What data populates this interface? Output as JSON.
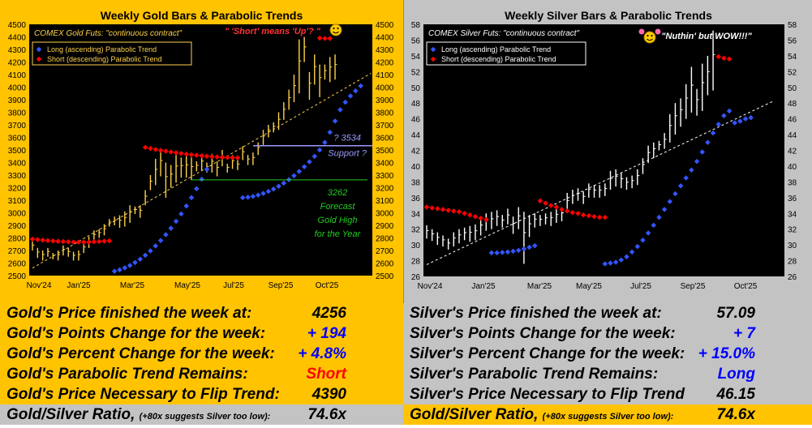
{
  "gold": {
    "chart_data": {
      "type": "bar",
      "title": "Weekly Gold Bars & Parabolic Trends",
      "subtitle": "COMEX Gold Futs:  \"continuous contract\"",
      "annotation_top": "\" 'Short' means 'Up'? \"",
      "legend": [
        "Long (ascending) Parabolic Trend",
        "Short (descending) Parabolic Trend"
      ],
      "legend_position": "top-left",
      "x_tick_labels": [
        "Nov'24",
        "Jan'25",
        "Mar'25",
        "May'25",
        "Jul'25",
        "Sep'25",
        "Oct'25"
      ],
      "ylim": [
        2500,
        4500
      ],
      "y_ticks": [
        2500,
        2600,
        2700,
        2800,
        2900,
        3000,
        3100,
        3200,
        3300,
        3400,
        3500,
        3600,
        3700,
        3800,
        3900,
        4000,
        4100,
        4200,
        4300,
        4400,
        4500
      ],
      "support_label_1": "? 3534",
      "support_label_2": "Support ?",
      "support_level": 3534,
      "forecast_label_1": "3262",
      "forecast_label_2": "Forecast",
      "forecast_label_3": "Gold High",
      "forecast_label_4": "for the Year",
      "forecast_level": 3262,
      "bars": [
        [
          2700,
          2770
        ],
        [
          2640,
          2720
        ],
        [
          2620,
          2700
        ],
        [
          2650,
          2720
        ],
        [
          2630,
          2680
        ],
        [
          2620,
          2700
        ],
        [
          2660,
          2740
        ],
        [
          2650,
          2720
        ],
        [
          2620,
          2690
        ],
        [
          2620,
          2700
        ],
        [
          2680,
          2760
        ],
        [
          2720,
          2810
        ],
        [
          2780,
          2860
        ],
        [
          2800,
          2870
        ],
        [
          2820,
          2910
        ],
        [
          2890,
          2950
        ],
        [
          2900,
          2970
        ],
        [
          2880,
          2980
        ],
        [
          2890,
          3010
        ],
        [
          2920,
          3060
        ],
        [
          2990,
          3050
        ],
        [
          2960,
          3060
        ],
        [
          3060,
          3180
        ],
        [
          3180,
          3300
        ],
        [
          3220,
          3430
        ],
        [
          3290,
          3500
        ],
        [
          3120,
          3400
        ],
        [
          3200,
          3380
        ],
        [
          3240,
          3460
        ],
        [
          3280,
          3440
        ],
        [
          3280,
          3450
        ],
        [
          3260,
          3440
        ],
        [
          3330,
          3410
        ],
        [
          3340,
          3460
        ],
        [
          3320,
          3400
        ],
        [
          3320,
          3470
        ],
        [
          3290,
          3410
        ],
        [
          3370,
          3500
        ],
        [
          3320,
          3390
        ],
        [
          3350,
          3460
        ],
        [
          3340,
          3420
        ],
        [
          3420,
          3530
        ],
        [
          3380,
          3460
        ],
        [
          3380,
          3480
        ],
        [
          3460,
          3560
        ],
        [
          3540,
          3660
        ],
        [
          3600,
          3700
        ],
        [
          3640,
          3720
        ],
        [
          3660,
          3800
        ],
        [
          3740,
          3880
        ],
        [
          3820,
          3980
        ],
        [
          3880,
          4100
        ],
        [
          3950,
          4380
        ],
        [
          4200,
          4400
        ],
        [
          3900,
          4120
        ],
        [
          4020,
          4260
        ],
        [
          3920,
          4180
        ],
        [
          4060,
          4180
        ],
        [
          4040,
          4240
        ],
        [
          4060,
          4260
        ]
      ],
      "short_trend": [
        [
          0,
          2790
        ],
        [
          1,
          2786
        ],
        [
          2,
          2782
        ],
        [
          3,
          2779
        ],
        [
          4,
          2776
        ],
        [
          5,
          2773
        ],
        [
          6,
          2771
        ],
        [
          7,
          2769
        ],
        [
          8,
          2767
        ],
        [
          9,
          2766
        ],
        [
          10,
          2766
        ],
        [
          11,
          2767
        ],
        [
          12,
          2769
        ],
        [
          13,
          2771
        ],
        [
          14,
          2774
        ],
        [
          15,
          2777
        ],
        [
          22,
          3520
        ],
        [
          23,
          3512
        ],
        [
          24,
          3504
        ],
        [
          25,
          3497
        ],
        [
          26,
          3490
        ],
        [
          27,
          3484
        ],
        [
          28,
          3478
        ],
        [
          29,
          3472
        ],
        [
          30,
          3467
        ],
        [
          31,
          3462
        ],
        [
          32,
          3458
        ],
        [
          33,
          3454
        ],
        [
          34,
          3450
        ],
        [
          35,
          3447
        ],
        [
          36,
          3444
        ],
        [
          37,
          3442
        ],
        [
          38,
          3440
        ],
        [
          39,
          3439
        ],
        [
          40,
          3438
        ],
        [
          56,
          4390
        ],
        [
          57,
          4388
        ],
        [
          58,
          4387
        ]
      ],
      "long_trend": [
        [
          16,
          2535
        ],
        [
          17,
          2546
        ],
        [
          18,
          2562
        ],
        [
          19,
          2581
        ],
        [
          20,
          2604
        ],
        [
          21,
          2631
        ],
        [
          22,
          2662
        ],
        [
          23,
          2697
        ],
        [
          24,
          2736
        ],
        [
          25,
          2779
        ],
        [
          26,
          2826
        ],
        [
          27,
          2877
        ],
        [
          28,
          2932
        ],
        [
          29,
          2991
        ],
        [
          30,
          3054
        ],
        [
          31,
          3121
        ],
        [
          32,
          3192
        ],
        [
          33,
          3267
        ],
        [
          34,
          3346
        ],
        [
          41,
          3120
        ],
        [
          42,
          3124
        ],
        [
          43,
          3131
        ],
        [
          44,
          3141
        ],
        [
          45,
          3154
        ],
        [
          46,
          3170
        ],
        [
          47,
          3189
        ],
        [
          48,
          3211
        ],
        [
          49,
          3236
        ],
        [
          50,
          3264
        ],
        [
          51,
          3295
        ],
        [
          52,
          3329
        ],
        [
          53,
          3366
        ],
        [
          54,
          3406
        ],
        [
          55,
          3449
        ],
        [
          56,
          3500
        ],
        [
          57,
          3560
        ],
        [
          58,
          3640
        ],
        [
          59,
          3730
        ],
        [
          60,
          3820
        ],
        [
          61,
          3880
        ],
        [
          62,
          3930
        ],
        [
          63,
          3970
        ],
        [
          64,
          4010
        ]
      ],
      "regression": [
        [
          0,
          2560
        ],
        [
          66,
          4110
        ]
      ]
    }
  },
  "silver": {
    "chart_data": {
      "type": "bar",
      "title": "Weekly Silver Bars & Parabolic Trends",
      "subtitle": "COMEX Silver Futs:  \"continuous contract\"",
      "annotation_top": "\"Nuthin' but WOW!!!\"",
      "legend": [
        "Long (ascending) Parabolic Trend",
        "Short (descending) Parabolic Trend"
      ],
      "legend_position": "top-left",
      "x_tick_labels": [
        "Nov'24",
        "Jan'25",
        "Mar'25",
        "May'25",
        "Jul'25",
        "Sep'25",
        "Oct'25"
      ],
      "ylim": [
        26,
        58
      ],
      "y_ticks": [
        26,
        28,
        30,
        32,
        34,
        36,
        38,
        40,
        42,
        44,
        46,
        48,
        50,
        52,
        54,
        56,
        58
      ],
      "bars": [
        [
          30.8,
          32.5
        ],
        [
          30.5,
          32.0
        ],
        [
          30.0,
          31.6
        ],
        [
          29.8,
          31.2
        ],
        [
          29.4,
          30.8
        ],
        [
          29.8,
          31.6
        ],
        [
          30.2,
          32.0
        ],
        [
          30.6,
          32.2
        ],
        [
          30.4,
          32.4
        ],
        [
          30.6,
          32.6
        ],
        [
          31.2,
          33.4
        ],
        [
          31.8,
          34.0
        ],
        [
          32.0,
          34.2
        ],
        [
          32.4,
          34.4
        ],
        [
          32.2,
          33.8
        ],
        [
          32.6,
          34.6
        ],
        [
          31.4,
          33.6
        ],
        [
          32.0,
          34.8
        ],
        [
          27.6,
          34.2
        ],
        [
          31.0,
          33.8
        ],
        [
          32.2,
          34.0
        ],
        [
          32.4,
          33.8
        ],
        [
          32.6,
          34.0
        ],
        [
          32.4,
          34.2
        ],
        [
          32.8,
          34.6
        ],
        [
          33.0,
          34.8
        ],
        [
          34.2,
          36.6
        ],
        [
          35.2,
          37.0
        ],
        [
          35.6,
          37.2
        ],
        [
          35.2,
          36.8
        ],
        [
          36.0,
          37.8
        ],
        [
          36.0,
          37.6
        ],
        [
          36.0,
          37.6
        ],
        [
          36.2,
          37.8
        ],
        [
          37.0,
          39.4
        ],
        [
          37.4,
          39.6
        ],
        [
          37.2,
          39.2
        ],
        [
          37.0,
          38.6
        ],
        [
          37.2,
          38.8
        ],
        [
          37.6,
          39.6
        ],
        [
          39.0,
          41.0
        ],
        [
          40.4,
          42.6
        ],
        [
          41.0,
          43.0
        ],
        [
          42.0,
          43.2
        ],
        [
          42.2,
          44.2
        ],
        [
          43.0,
          46.6
        ],
        [
          44.0,
          48.0
        ],
        [
          45.0,
          48.6
        ],
        [
          46.0,
          50.4
        ],
        [
          46.8,
          52.6
        ],
        [
          46.4,
          49.8
        ],
        [
          47.0,
          53.0
        ],
        [
          49.0,
          54.0
        ],
        [
          49.6,
          57.2
        ]
      ],
      "short_trend": [
        [
          0,
          34.8
        ],
        [
          1,
          34.7
        ],
        [
          2,
          34.6
        ],
        [
          3,
          34.5
        ],
        [
          4,
          34.4
        ],
        [
          5,
          34.3
        ],
        [
          6,
          34.2
        ],
        [
          7,
          34.0
        ],
        [
          8,
          33.8
        ],
        [
          9,
          33.6
        ],
        [
          10,
          33.4
        ],
        [
          11,
          33.2
        ],
        [
          21,
          35.6
        ],
        [
          22,
          35.3
        ],
        [
          23,
          35.0
        ],
        [
          24,
          34.8
        ],
        [
          25,
          34.5
        ],
        [
          26,
          34.3
        ],
        [
          27,
          34.1
        ],
        [
          28,
          34.0
        ],
        [
          29,
          33.8
        ],
        [
          30,
          33.7
        ],
        [
          31,
          33.6
        ],
        [
          32,
          33.5
        ],
        [
          33,
          33.5
        ],
        [
          54,
          53.9
        ],
        [
          55,
          53.7
        ],
        [
          56,
          53.6
        ]
      ],
      "long_trend": [
        [
          12,
          29.0
        ],
        [
          13,
          29.0
        ],
        [
          14,
          29.05
        ],
        [
          15,
          29.1
        ],
        [
          16,
          29.2
        ],
        [
          17,
          29.3
        ],
        [
          18,
          29.5
        ],
        [
          19,
          29.7
        ],
        [
          20,
          29.9
        ],
        [
          33,
          27.6
        ],
        [
          34,
          27.7
        ],
        [
          35,
          27.8
        ],
        [
          36,
          28.1
        ],
        [
          37,
          28.5
        ],
        [
          38,
          29.1
        ],
        [
          39,
          29.8
        ],
        [
          40,
          30.6
        ],
        [
          41,
          31.5
        ],
        [
          42,
          32.5
        ],
        [
          43,
          33.5
        ],
        [
          44,
          34.5
        ],
        [
          45,
          35.5
        ],
        [
          46,
          36.5
        ],
        [
          47,
          37.5
        ],
        [
          48,
          38.5
        ],
        [
          49,
          39.5
        ],
        [
          50,
          40.6
        ],
        [
          51,
          41.8
        ],
        [
          52,
          43.0
        ],
        [
          53,
          44.2
        ],
        [
          54,
          45.3
        ],
        [
          55,
          46.4
        ],
        [
          56,
          47.0
        ],
        [
          57,
          45.5
        ],
        [
          58,
          45.7
        ],
        [
          59,
          46.0
        ],
        [
          60,
          46.15
        ]
      ],
      "regression": [
        [
          0,
          27.5
        ],
        [
          64,
          48.2
        ]
      ]
    }
  },
  "goldStats": {
    "rows": [
      {
        "label": "Gold's Price finished the week at:",
        "value": "4256",
        "color": "black"
      },
      {
        "label": "Gold's Points Change for the week:",
        "value": "+ 194",
        "color": "blue"
      },
      {
        "label": "Gold's Percent Change for the week:",
        "value": "+ 4.8%",
        "color": "blue"
      },
      {
        "label": "Gold's Parabolic Trend Remains:",
        "value": "Short",
        "color": "red"
      },
      {
        "label": "Gold's Price Necessary to Flip Trend:",
        "value": "4390",
        "color": "black"
      }
    ],
    "ratio_label": "Gold/Silver Ratio,",
    "ratio_note": "(+80x suggests Silver too low):",
    "ratio_value": "74.6x"
  },
  "silverStats": {
    "rows": [
      {
        "label": "Silver's Price finished the week at:",
        "value": "57.09",
        "color": "black"
      },
      {
        "label": "Silver's Points Change for the week:",
        "value": "+ 7",
        "color": "blue"
      },
      {
        "label": "Silver's Percent Change for the week:",
        "value": "+ 15.0%",
        "color": "blue"
      },
      {
        "label": "Silver's Parabolic Trend Remains:",
        "value": "Long",
        "color": "blue"
      },
      {
        "label": "Silver's Price Necessary to Flip Trend",
        "value": "46.15",
        "color": "black"
      }
    ],
    "ratio_label": "Gold/Silver Ratio,",
    "ratio_note": "(+80x suggests Silver too low):",
    "ratio_value": "74.6x"
  },
  "colors": {
    "gold_bg": "#ffc300",
    "silver_bg": "#c3c3c3",
    "plot_bg": "#000000",
    "long": "#3355ff",
    "short": "#ff0000",
    "gold_bar": "#ffd24a",
    "silver_bar": "#ffffff"
  }
}
